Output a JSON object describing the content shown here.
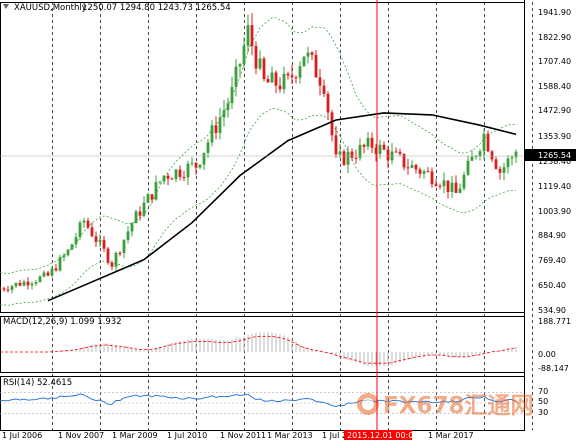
{
  "header": {
    "symbol": "XAUUSD,Monthly",
    "ohlc": "1250.07 1294.80 1243.73 1265.54"
  },
  "price_axis": {
    "ticks": [
      "1941.90",
      "1822.90",
      "1707.40",
      "1588.40",
      "1472.90",
      "1353.90",
      "1238.40",
      "1119.40",
      "1003.90",
      "884.90",
      "769.40",
      "650.40",
      "534.90"
    ],
    "current_price": "1265.54"
  },
  "time_axis": {
    "ticks": [
      "1 Jul 2006",
      "1 Nov 2007",
      "1 Mar 2009",
      "1 Jul 2010",
      "1 Nov 2011",
      "1 Mar 2013",
      "1 Jul 2",
      "1 Mar 2017"
    ],
    "crosshair_label": "2015.12.01 00:00"
  },
  "macd": {
    "label": "MACD(12,26,9) 1.099 1.932",
    "ticks": [
      "188.771",
      "0.00",
      "-88.147"
    ]
  },
  "rsi": {
    "label": "RSI(14) 52.4615",
    "ticks": [
      "70",
      "50",
      "30"
    ]
  },
  "watermark": "FX678汇通网",
  "colors": {
    "bull": "#3aa03a",
    "bear": "#d62020",
    "ma": "#000000",
    "bands": "#2c9a2c",
    "macd_hist": "#b8b8b8",
    "macd_signal": "#ff0000",
    "rsi": "#1e6fd9",
    "crosshair": "#ff0000"
  },
  "chart_data": {
    "type": "candlestick",
    "symbol": "XAUUSD",
    "timeframe": "Monthly",
    "ylim": [
      485,
      1995
    ],
    "close_path": [
      [
        "2006-06",
        600
      ],
      [
        "2006-12",
        630
      ],
      [
        "2007-06",
        660
      ],
      [
        "2007-11",
        780
      ],
      [
        "2008-03",
        930
      ],
      [
        "2008-10",
        720
      ],
      [
        "2009-03",
        920
      ],
      [
        "2009-11",
        1150
      ],
      [
        "2010-07",
        1200
      ],
      [
        "2011-04",
        1550
      ],
      [
        "2011-08",
        1850
      ],
      [
        "2011-12",
        1600
      ],
      [
        "2012-06",
        1600
      ],
      [
        "2012-10",
        1750
      ],
      [
        "2013-03",
        1600
      ],
      [
        "2013-06",
        1220
      ],
      [
        "2014-03",
        1300
      ],
      [
        "2014-12",
        1200
      ],
      [
        "2015-08",
        1130
      ],
      [
        "2015-12",
        1060
      ],
      [
        "2016-07",
        1350
      ],
      [
        "2016-11",
        1170
      ],
      [
        "2017-03",
        1265.54
      ]
    ],
    "moving_average": [
      [
        "2007-06",
        540
      ],
      [
        "2008-06",
        640
      ],
      [
        "2009-06",
        740
      ],
      [
        "2010-06",
        920
      ],
      [
        "2011-06",
        1150
      ],
      [
        "2012-06",
        1320
      ],
      [
        "2013-06",
        1420
      ],
      [
        "2014-06",
        1455
      ],
      [
        "2015-06",
        1445
      ],
      [
        "2016-06",
        1395
      ],
      [
        "2017-03",
        1350
      ]
    ],
    "macd_range": [
      -88.147,
      188.771
    ],
    "rsi_range": [
      0,
      100
    ],
    "rsi_last": 52.4615
  }
}
